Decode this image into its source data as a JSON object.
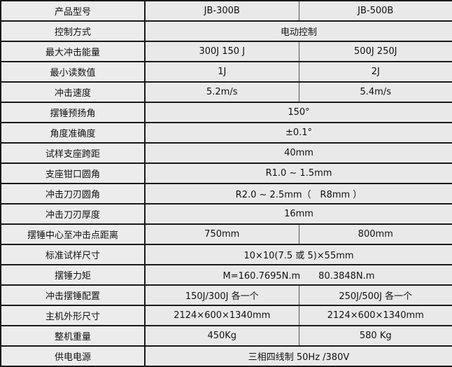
{
  "rows": [
    {
      "label": "产品型号",
      "values": [
        "JB-300B",
        "JB-500B"
      ]
    },
    {
      "label": "控制方式",
      "values": [
        "电动控制"
      ]
    },
    {
      "label": "最大冲击能量",
      "values": [
        "300J 150 J",
        "500J 250J"
      ]
    },
    {
      "label": "最小读数值",
      "values": [
        "1J",
        "2J"
      ]
    },
    {
      "label": "冲击速度",
      "values": [
        "5.2m/s",
        "5.4m/s"
      ]
    },
    {
      "label": "摆锤预扬角",
      "values": [
        "150°"
      ]
    },
    {
      "label": "角度准确度",
      "values": [
        "±0.1°"
      ]
    },
    {
      "label": "试样支座跨距",
      "values": [
        "40mm"
      ]
    },
    {
      "label": "支座钳口圆角",
      "values": [
        "R1.0 ~ 1.5mm"
      ]
    },
    {
      "label": "冲击刀刃圆角",
      "values": [
        "R2.0 ~ 2.5mm（　R8mm ）"
      ]
    },
    {
      "label": "冲击刀刃厚度",
      "values": [
        "16mm"
      ]
    },
    {
      "label": "摆锤中心至冲击点距离",
      "values": [
        "750mm",
        "800mm"
      ]
    },
    {
      "label": "标准试样尺寸",
      "values": [
        "10×10(7.5 或 5)×55mm"
      ]
    },
    {
      "label": "摆锤力矩",
      "values": [
        "M=160.7695N.m　　80.3848N.m"
      ]
    },
    {
      "label": "冲击摆锤配置",
      "values": [
        "150J/300J 各一个",
        "250J/500J 各一个"
      ]
    },
    {
      "label": "主机外形尺寸",
      "values": [
        "2124×600×1340mm",
        "2124×600×1340mm"
      ]
    },
    {
      "label": "整机重量",
      "values": [
        "450Kg",
        "580 Kg"
      ]
    },
    {
      "label": "供电电源",
      "values": [
        "三相四线制 50Hz /380V"
      ]
    }
  ]
}
